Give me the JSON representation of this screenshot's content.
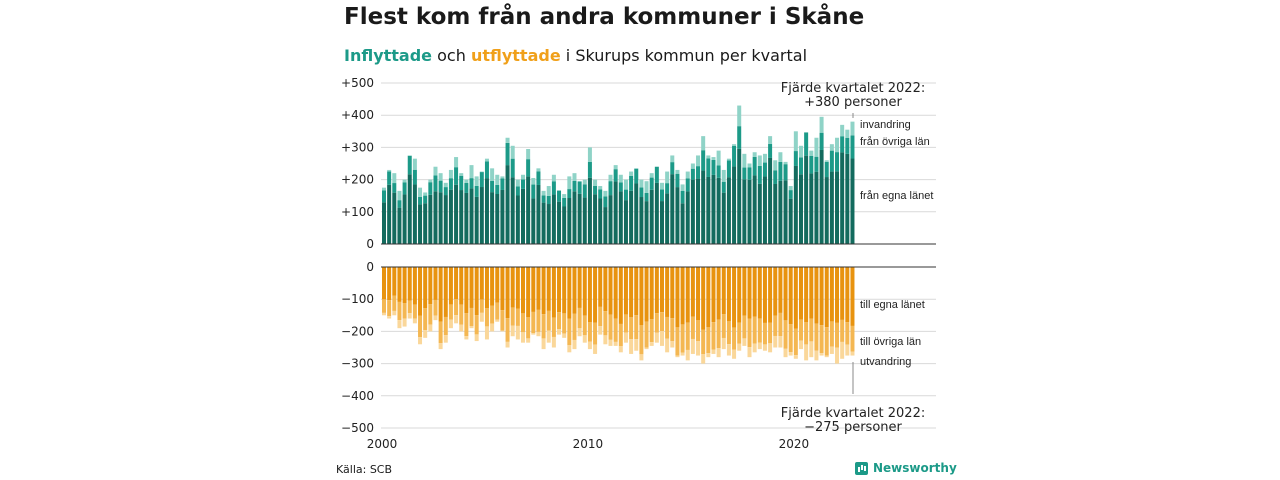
{
  "title": "Flest kom från andra kommuner i Skåne",
  "subtitle": {
    "in_word": "Inflyttade",
    "and_word": "och",
    "out_word": "utflyttade",
    "rest": "i Skurups kommun per kvartal"
  },
  "source": "Källa: SCB",
  "logo_text": "Newsworthy",
  "colors": {
    "in_same_county": "#136b5e",
    "in_other_county": "#1c9a88",
    "in_immigration": "#8fd3c7",
    "out_same_county": "#e8930f",
    "out_other_county": "#f4b752",
    "out_emigration": "#fad79a",
    "grid": "#d9d9d9",
    "axis": "#333333"
  },
  "chart_data": {
    "type": "bar",
    "stacked": true,
    "start_year": 2000,
    "start_quarter": 1,
    "quarters": 92,
    "ylim": [
      -500,
      500
    ],
    "y_ticks_top": [
      "+500",
      "+400",
      "+300",
      "+200",
      "+100",
      "0"
    ],
    "y_ticks_bottom": [
      "0",
      "−100",
      "−200",
      "−300",
      "−400",
      "−500"
    ],
    "x_ticks": [
      "2000",
      "2010",
      "2020"
    ],
    "grid": true,
    "series_labels": {
      "in_immigration": "invandring",
      "in_other_county": "från övriga län",
      "in_same_county": "från egna länet",
      "out_same_county": "till egna länet",
      "out_other_county": "till övriga län",
      "out_emigration": "utvandring"
    },
    "annotation_top": [
      "Fjärde kvartalet 2022:",
      "+380 personer"
    ],
    "annotation_bottom": [
      "Fjärde kvartalet 2022:",
      "−275 personer"
    ],
    "inflow_total": [
      175,
      230,
      220,
      165,
      200,
      275,
      265,
      175,
      160,
      200,
      240,
      220,
      190,
      230,
      270,
      220,
      200,
      245,
      210,
      225,
      265,
      235,
      215,
      210,
      330,
      305,
      200,
      215,
      295,
      205,
      235,
      165,
      180,
      215,
      165,
      155,
      210,
      220,
      195,
      200,
      300,
      200,
      180,
      165,
      215,
      245,
      215,
      200,
      225,
      235,
      200,
      195,
      220,
      240,
      190,
      225,
      275,
      230,
      185,
      225,
      250,
      275,
      335,
      275,
      270,
      290,
      230,
      265,
      310,
      430,
      280,
      250,
      285,
      275,
      280,
      335,
      260,
      285,
      255,
      180,
      350,
      305,
      345,
      290,
      330,
      395,
      260,
      310,
      330,
      370,
      355,
      380
    ],
    "outflow_total": [
      150,
      160,
      150,
      190,
      185,
      160,
      175,
      240,
      220,
      200,
      165,
      255,
      235,
      190,
      175,
      200,
      225,
      190,
      230,
      170,
      225,
      200,
      170,
      200,
      250,
      215,
      225,
      235,
      235,
      210,
      215,
      255,
      235,
      250,
      210,
      220,
      265,
      255,
      215,
      235,
      255,
      270,
      210,
      240,
      245,
      245,
      265,
      235,
      270,
      260,
      290,
      255,
      245,
      235,
      245,
      265,
      250,
      280,
      275,
      290,
      270,
      275,
      300,
      280,
      270,
      280,
      255,
      275,
      285,
      260,
      245,
      280,
      265,
      255,
      260,
      265,
      250,
      250,
      280,
      275,
      285,
      255,
      290,
      280,
      290,
      275,
      280,
      270,
      300,
      285,
      275,
      275
    ]
  }
}
